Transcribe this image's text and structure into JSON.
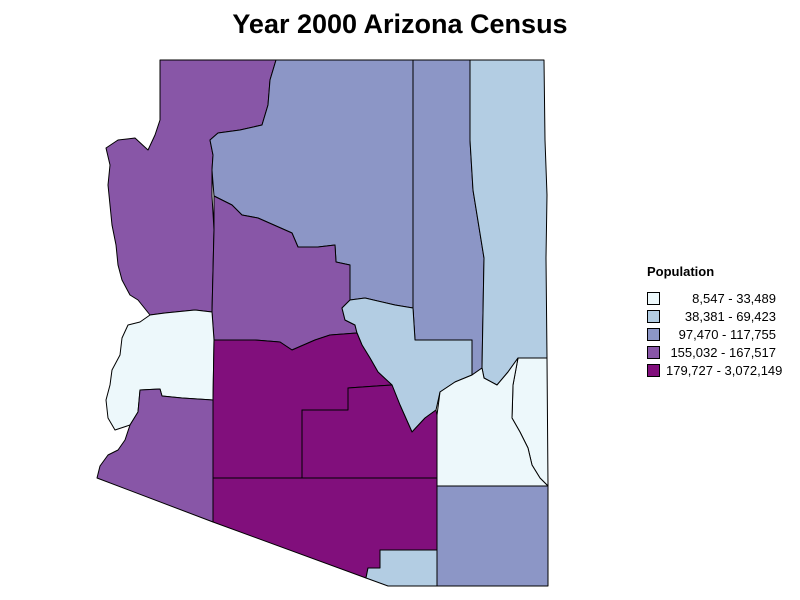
{
  "title": "Year 2000 Arizona Census",
  "legend": {
    "title": "Population",
    "classes": [
      {
        "range": "8,547 - 33,489",
        "color": "#edf8fb"
      },
      {
        "range": "38,381 - 69,423",
        "color": "#b3cde3"
      },
      {
        "range": "97,470 - 117,755",
        "color": "#8c96c6"
      },
      {
        "range": "155,032 - 167,517",
        "color": "#8856a7"
      },
      {
        "range": "179,727 - 3,072,149",
        "color": "#810f7c"
      }
    ]
  },
  "counties": [
    {
      "name": "mohave",
      "class": 3
    },
    {
      "name": "coconino",
      "class": 2
    },
    {
      "name": "navajo",
      "class": 2
    },
    {
      "name": "apache",
      "class": 1
    },
    {
      "name": "yavapai",
      "class": 3
    },
    {
      "name": "la-paz",
      "class": 0
    },
    {
      "name": "gila",
      "class": 1
    },
    {
      "name": "greenlee",
      "class": 0
    },
    {
      "name": "graham",
      "class": 0
    },
    {
      "name": "maricopa",
      "class": 4
    },
    {
      "name": "pinal",
      "class": 4
    },
    {
      "name": "yuma",
      "class": 3
    },
    {
      "name": "pima",
      "class": 4
    },
    {
      "name": "santa-cruz",
      "class": 1
    },
    {
      "name": "cochise",
      "class": 2
    }
  ]
}
